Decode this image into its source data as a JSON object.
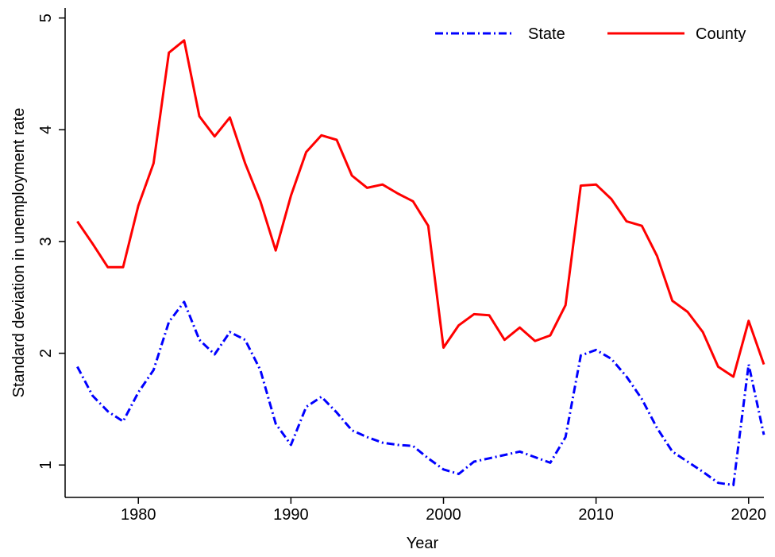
{
  "chart_data": {
    "type": "line",
    "x_label": "Year",
    "y_label": "Standard deviation in unemployment rate",
    "x": [
      1976,
      1977,
      1978,
      1979,
      1980,
      1981,
      1982,
      1983,
      1984,
      1985,
      1986,
      1987,
      1988,
      1989,
      1990,
      1991,
      1992,
      1993,
      1994,
      1995,
      1996,
      1997,
      1998,
      1999,
      2000,
      2001,
      2002,
      2003,
      2004,
      2005,
      2006,
      2007,
      2008,
      2009,
      2010,
      2011,
      2012,
      2013,
      2014,
      2015,
      2016,
      2017,
      2018,
      2019,
      2020,
      2021
    ],
    "series": [
      {
        "name": "State",
        "color": "#0000ff",
        "dash": "dash-dot",
        "values": [
          1.88,
          1.62,
          1.48,
          1.39,
          1.65,
          1.85,
          2.28,
          2.46,
          2.12,
          1.99,
          2.19,
          2.12,
          1.85,
          1.37,
          1.18,
          1.52,
          1.61,
          1.47,
          1.31,
          1.25,
          1.2,
          1.18,
          1.17,
          1.06,
          0.96,
          0.92,
          1.03,
          1.06,
          1.09,
          1.12,
          1.07,
          1.02,
          1.25,
          1.98,
          2.03,
          1.95,
          1.79,
          1.59,
          1.33,
          1.12,
          1.03,
          0.94,
          0.84,
          0.82,
          1.9,
          1.27
        ]
      },
      {
        "name": "County",
        "color": "#ff0000",
        "dash": "solid",
        "values": [
          3.18,
          2.98,
          2.77,
          2.77,
          3.32,
          3.7,
          4.69,
          4.8,
          4.12,
          3.94,
          4.11,
          3.7,
          3.36,
          2.92,
          3.41,
          3.8,
          3.95,
          3.91,
          3.59,
          3.48,
          3.51,
          3.43,
          3.36,
          3.14,
          2.05,
          2.25,
          2.35,
          2.34,
          2.12,
          2.23,
          2.11,
          2.16,
          2.43,
          3.5,
          3.51,
          3.38,
          3.18,
          3.14,
          2.87,
          2.47,
          2.37,
          2.19,
          1.88,
          1.79,
          2.29,
          1.9
        ]
      }
    ],
    "xlim": [
      1975.2,
      2021
    ],
    "ylim": [
      0.71,
      5.09
    ],
    "xticks": [
      1980,
      1990,
      2000,
      2010,
      2020
    ],
    "yticks": [
      1,
      2,
      3,
      4,
      5
    ],
    "legend": "top-right",
    "grid": false
  }
}
